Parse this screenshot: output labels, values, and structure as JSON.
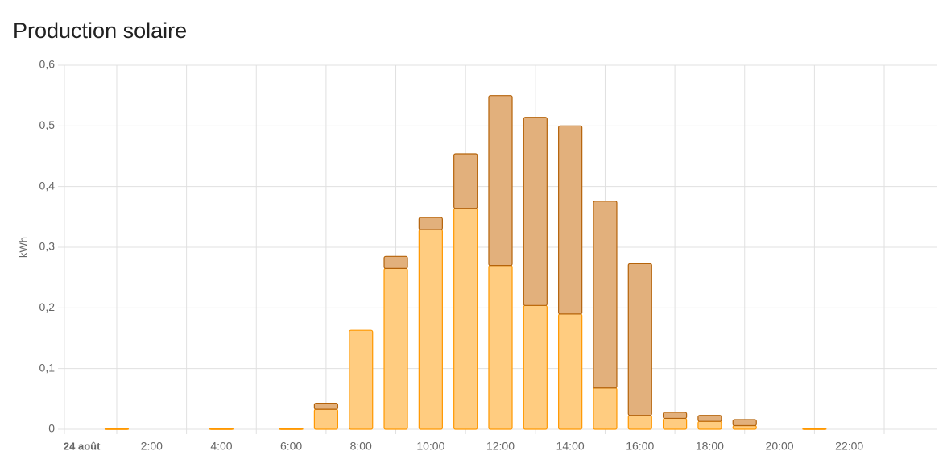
{
  "chart_data": {
    "type": "stacked-bar",
    "title": "Production solaire",
    "y_label": "kWh",
    "categories": [
      "24 août",
      null,
      "2:00",
      null,
      "4:00",
      null,
      "6:00",
      null,
      "8:00",
      null,
      "10:00",
      null,
      "12:00",
      null,
      "14:00",
      null,
      "16:00",
      null,
      "18:00",
      null,
      "20:00",
      null,
      "22:00",
      null,
      null
    ],
    "series": [
      {
        "color": "#ff9800",
        "fill": "#ffcc80",
        "values": [
          0,
          0.001,
          0,
          0,
          0.001,
          0,
          0.001,
          0.033,
          0.163,
          0.265,
          0.329,
          0.364,
          0.27,
          0.204,
          0.19,
          0.068,
          0.023,
          0.018,
          0.013,
          0.006,
          0,
          0.001,
          0,
          0,
          0
        ]
      },
      {
        "color": "#b5630a",
        "fill": "#e2b07c",
        "values": [
          0,
          0,
          0,
          0,
          0,
          0,
          0,
          0.01,
          0,
          0.02,
          0.02,
          0.09,
          0.28,
          0.31,
          0.31,
          0.308,
          0.25,
          0.01,
          0.01,
          0.01,
          0,
          0,
          0,
          0,
          0
        ]
      }
    ],
    "ylim": [
      0,
      0.6
    ],
    "yticks": [
      0,
      {
        "value": 0.1,
        "label": "0,1"
      },
      {
        "value": 0.2,
        "label": "0,2"
      },
      {
        "value": 0.3,
        "label": "0,3"
      },
      {
        "value": 0.4,
        "label": "0,4"
      },
      {
        "value": 0.5,
        "label": "0,5"
      },
      {
        "value": 0.6,
        "label": "0,6"
      }
    ],
    "grid": true
  }
}
